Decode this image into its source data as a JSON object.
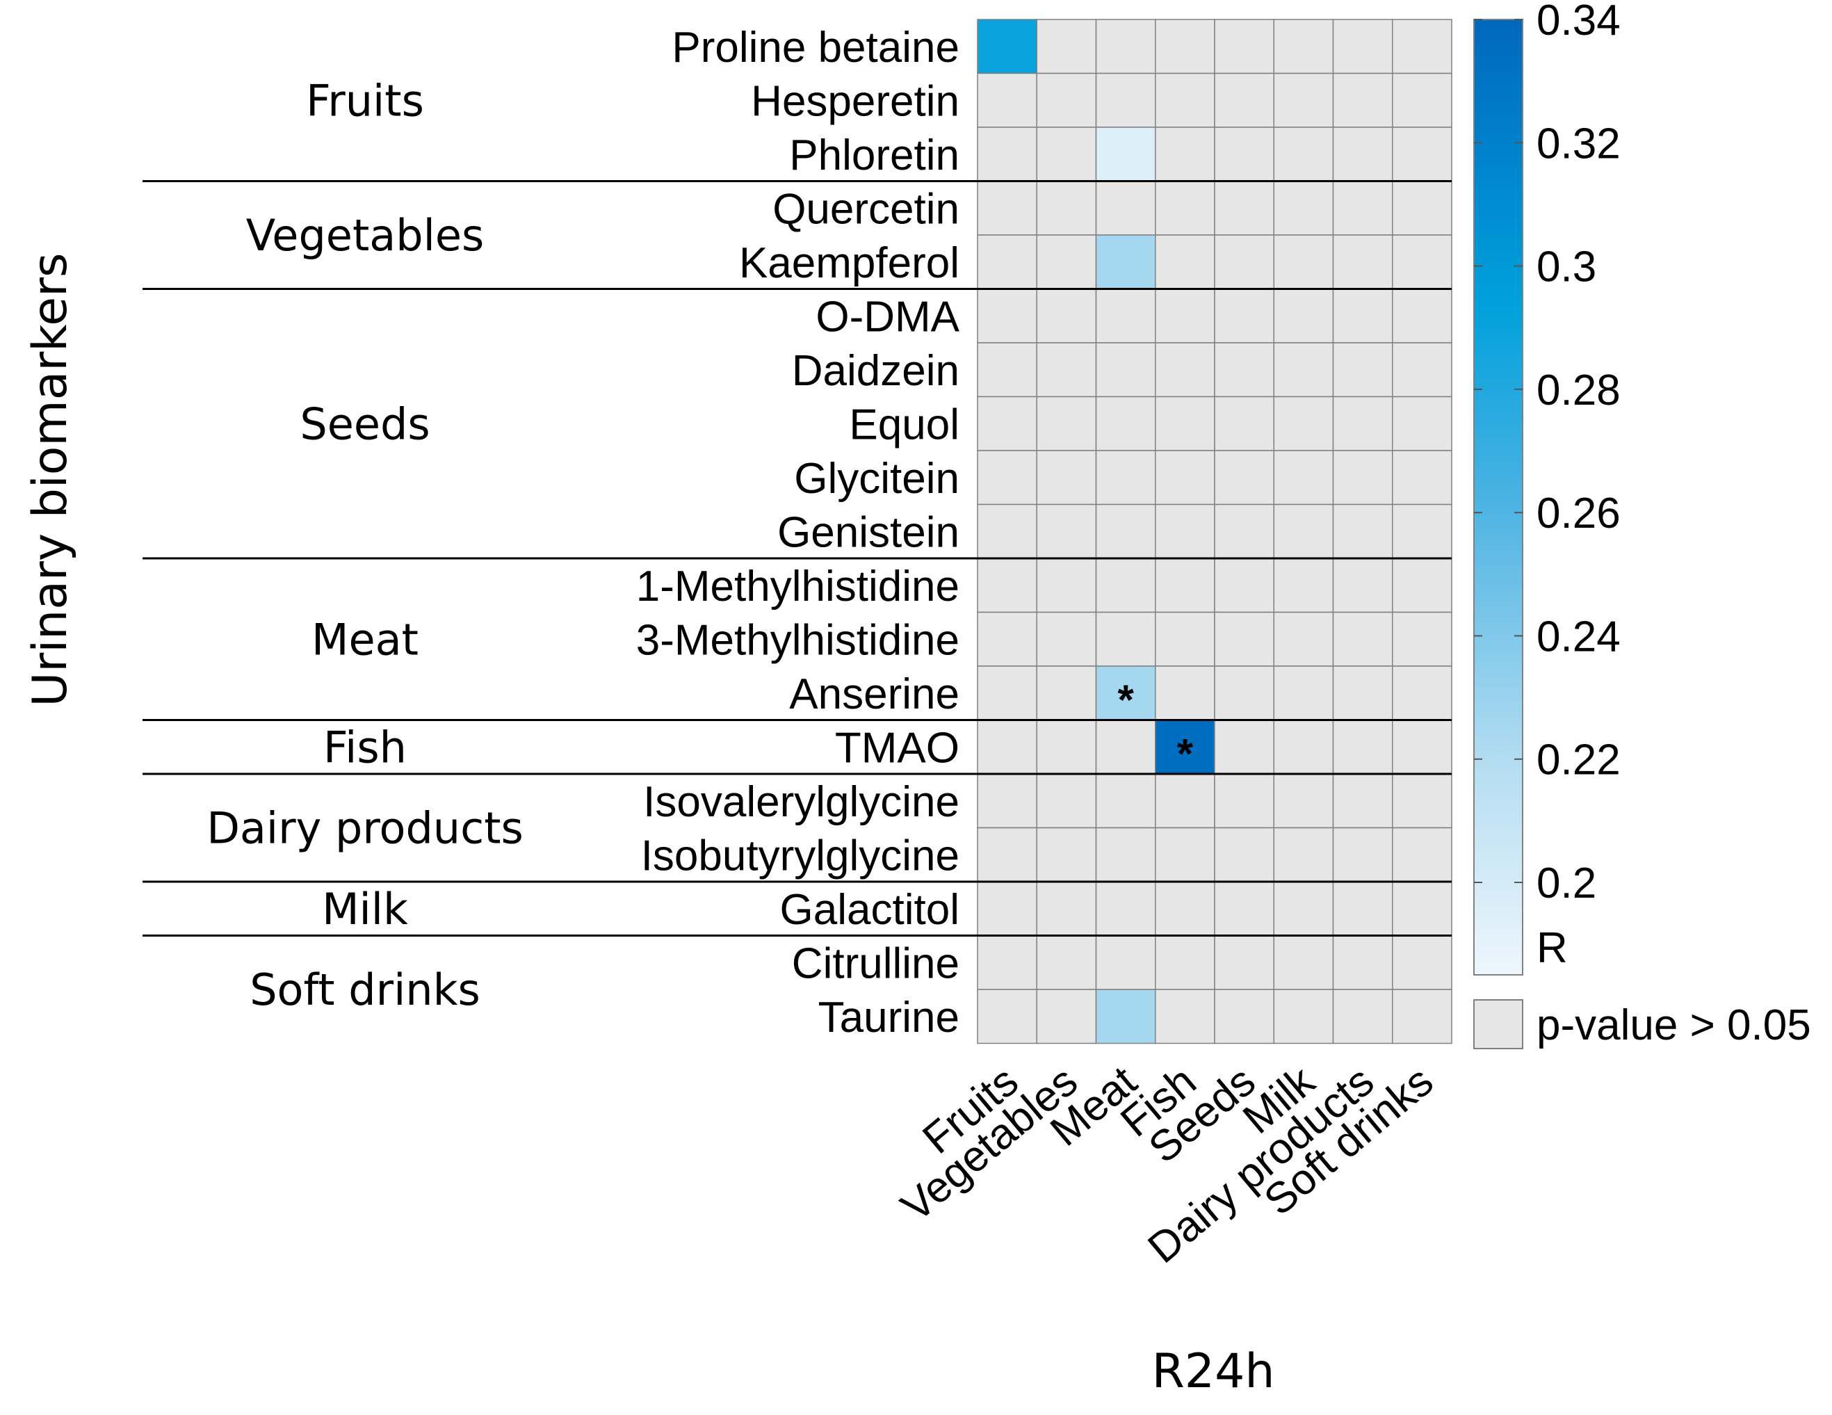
{
  "chart_data": {
    "type": "heatmap",
    "ylabel": "Urinary biomarkers",
    "xlabel": "R24h",
    "x_categories": [
      "Fruits",
      "Vegetables",
      "Meat",
      "Fish",
      "Seeds",
      "Milk",
      "Dairy products",
      "Soft drinks"
    ],
    "groups": [
      {
        "name": "Fruits",
        "rows": [
          "Proline betaine",
          "Hesperetin",
          "Phloretin"
        ]
      },
      {
        "name": "Vegetables",
        "rows": [
          "Quercetin",
          "Kaempferol"
        ]
      },
      {
        "name": "Seeds",
        "rows": [
          "O-DMA",
          "Daidzein",
          "Equol",
          "Glycitein",
          "Genistein"
        ]
      },
      {
        "name": "Meat",
        "rows": [
          "1-Methylhistidine",
          "3-Methylhistidine",
          "Anserine"
        ]
      },
      {
        "name": "Fish",
        "rows": [
          "TMAO"
        ]
      },
      {
        "name": "Dairy products",
        "rows": [
          "Isovalerylglycine",
          "Isobutyrylglycine"
        ]
      },
      {
        "name": "Milk",
        "rows": [
          "Galactitol"
        ]
      },
      {
        "name": "Soft drinks",
        "rows": [
          "Citrulline",
          "Taurine"
        ]
      }
    ],
    "significant_cells": [
      {
        "row": "Proline betaine",
        "col": "Fruits",
        "r": 0.29,
        "star": false
      },
      {
        "row": "Phloretin",
        "col": "Meat",
        "r": 0.195,
        "star": false
      },
      {
        "row": "Kaempferol",
        "col": "Meat",
        "r": 0.225,
        "star": false
      },
      {
        "row": "Anserine",
        "col": "Meat",
        "r": 0.225,
        "star": true
      },
      {
        "row": "TMAO",
        "col": "Fish",
        "r": 0.335,
        "star": true
      },
      {
        "row": "Taurine",
        "col": "Meat",
        "r": 0.225,
        "star": false
      }
    ],
    "star_symbol": "*",
    "colorbar": {
      "min": 0.185,
      "max": 0.34,
      "ticks": [
        "0.34",
        "0.32",
        "0.3",
        "0.28",
        "0.26",
        "0.24",
        "0.22",
        "0.2"
      ],
      "tick_values": [
        0.34,
        0.32,
        0.3,
        0.28,
        0.26,
        0.24,
        0.22,
        0.2
      ],
      "label": "R"
    },
    "nonsig_legend": "p-value > 0.05",
    "colors": {
      "nonsig": "#e6e6e6",
      "grid": "#808080",
      "low": "#eef6fc",
      "mid": "#00a1dc",
      "high": "#0068bd"
    }
  }
}
